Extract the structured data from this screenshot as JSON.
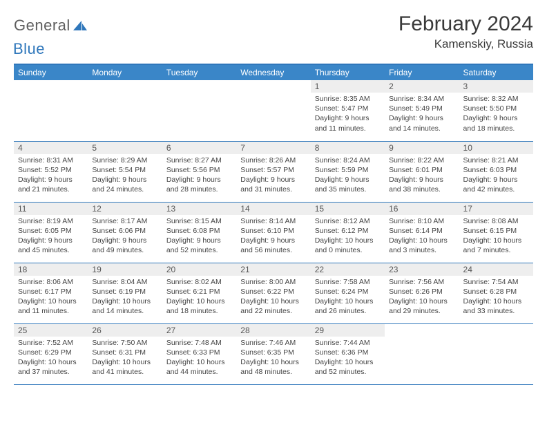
{
  "logo": {
    "text1": "General",
    "text2": "Blue"
  },
  "title": "February 2024",
  "subtitle": "Kamenskiy, Russia",
  "colors": {
    "header_bg": "#3a86c8",
    "border": "#2f77bb",
    "daynum_bg": "#eeeeee",
    "logo_gray": "#5e5e5e",
    "logo_blue": "#2f77bb"
  },
  "dayNames": [
    "Sunday",
    "Monday",
    "Tuesday",
    "Wednesday",
    "Thursday",
    "Friday",
    "Saturday"
  ],
  "weeks": [
    [
      null,
      null,
      null,
      null,
      {
        "n": "1",
        "sr": "8:35 AM",
        "ss": "5:47 PM",
        "dl": "9 hours and 11 minutes."
      },
      {
        "n": "2",
        "sr": "8:34 AM",
        "ss": "5:49 PM",
        "dl": "9 hours and 14 minutes."
      },
      {
        "n": "3",
        "sr": "8:32 AM",
        "ss": "5:50 PM",
        "dl": "9 hours and 18 minutes."
      }
    ],
    [
      {
        "n": "4",
        "sr": "8:31 AM",
        "ss": "5:52 PM",
        "dl": "9 hours and 21 minutes."
      },
      {
        "n": "5",
        "sr": "8:29 AM",
        "ss": "5:54 PM",
        "dl": "9 hours and 24 minutes."
      },
      {
        "n": "6",
        "sr": "8:27 AM",
        "ss": "5:56 PM",
        "dl": "9 hours and 28 minutes."
      },
      {
        "n": "7",
        "sr": "8:26 AM",
        "ss": "5:57 PM",
        "dl": "9 hours and 31 minutes."
      },
      {
        "n": "8",
        "sr": "8:24 AM",
        "ss": "5:59 PM",
        "dl": "9 hours and 35 minutes."
      },
      {
        "n": "9",
        "sr": "8:22 AM",
        "ss": "6:01 PM",
        "dl": "9 hours and 38 minutes."
      },
      {
        "n": "10",
        "sr": "8:21 AM",
        "ss": "6:03 PM",
        "dl": "9 hours and 42 minutes."
      }
    ],
    [
      {
        "n": "11",
        "sr": "8:19 AM",
        "ss": "6:05 PM",
        "dl": "9 hours and 45 minutes."
      },
      {
        "n": "12",
        "sr": "8:17 AM",
        "ss": "6:06 PM",
        "dl": "9 hours and 49 minutes."
      },
      {
        "n": "13",
        "sr": "8:15 AM",
        "ss": "6:08 PM",
        "dl": "9 hours and 52 minutes."
      },
      {
        "n": "14",
        "sr": "8:14 AM",
        "ss": "6:10 PM",
        "dl": "9 hours and 56 minutes."
      },
      {
        "n": "15",
        "sr": "8:12 AM",
        "ss": "6:12 PM",
        "dl": "10 hours and 0 minutes."
      },
      {
        "n": "16",
        "sr": "8:10 AM",
        "ss": "6:14 PM",
        "dl": "10 hours and 3 minutes."
      },
      {
        "n": "17",
        "sr": "8:08 AM",
        "ss": "6:15 PM",
        "dl": "10 hours and 7 minutes."
      }
    ],
    [
      {
        "n": "18",
        "sr": "8:06 AM",
        "ss": "6:17 PM",
        "dl": "10 hours and 11 minutes."
      },
      {
        "n": "19",
        "sr": "8:04 AM",
        "ss": "6:19 PM",
        "dl": "10 hours and 14 minutes."
      },
      {
        "n": "20",
        "sr": "8:02 AM",
        "ss": "6:21 PM",
        "dl": "10 hours and 18 minutes."
      },
      {
        "n": "21",
        "sr": "8:00 AM",
        "ss": "6:22 PM",
        "dl": "10 hours and 22 minutes."
      },
      {
        "n": "22",
        "sr": "7:58 AM",
        "ss": "6:24 PM",
        "dl": "10 hours and 26 minutes."
      },
      {
        "n": "23",
        "sr": "7:56 AM",
        "ss": "6:26 PM",
        "dl": "10 hours and 29 minutes."
      },
      {
        "n": "24",
        "sr": "7:54 AM",
        "ss": "6:28 PM",
        "dl": "10 hours and 33 minutes."
      }
    ],
    [
      {
        "n": "25",
        "sr": "7:52 AM",
        "ss": "6:29 PM",
        "dl": "10 hours and 37 minutes."
      },
      {
        "n": "26",
        "sr": "7:50 AM",
        "ss": "6:31 PM",
        "dl": "10 hours and 41 minutes."
      },
      {
        "n": "27",
        "sr": "7:48 AM",
        "ss": "6:33 PM",
        "dl": "10 hours and 44 minutes."
      },
      {
        "n": "28",
        "sr": "7:46 AM",
        "ss": "6:35 PM",
        "dl": "10 hours and 48 minutes."
      },
      {
        "n": "29",
        "sr": "7:44 AM",
        "ss": "6:36 PM",
        "dl": "10 hours and 52 minutes."
      },
      null,
      null
    ]
  ],
  "labels": {
    "sunrise": "Sunrise: ",
    "sunset": "Sunset: ",
    "daylight": "Daylight: "
  }
}
